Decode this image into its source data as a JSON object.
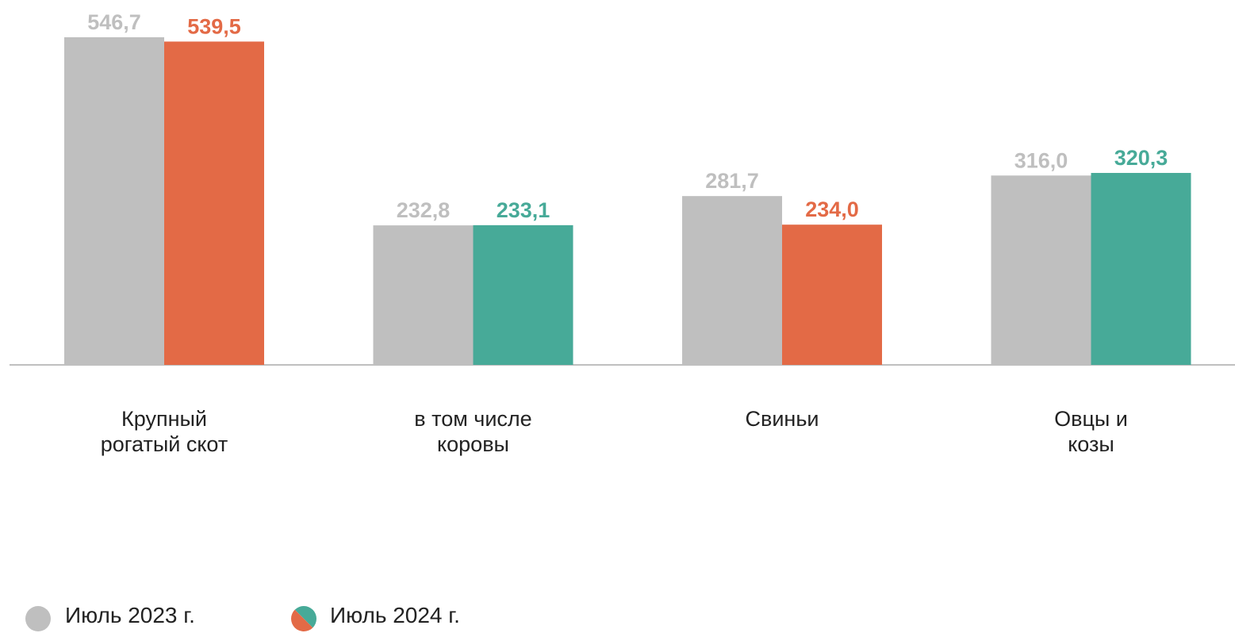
{
  "chart_data": {
    "type": "bar",
    "categories": [
      "Крупный\nрогатый скот",
      "в том числе\nкоровы",
      "Свиньи",
      "Овцы и\nкозы"
    ],
    "series": [
      {
        "name": "Июль 2023 г.",
        "color": "#bfbfbf",
        "values": [
          546.7,
          232.8,
          281.7,
          316.0
        ],
        "value_labels": [
          "546,7",
          "232,8",
          "281,7",
          "316,0"
        ]
      },
      {
        "name": "Июль 2024 г.",
        "colors": [
          "#e36a46",
          "#47aa98",
          "#e36a46",
          "#47aa98"
        ],
        "values": [
          539.5,
          233.1,
          234.0,
          320.3
        ],
        "value_labels": [
          "539,5",
          "233,1",
          "234,0",
          "320,3"
        ]
      }
    ],
    "legend": "bottom-left"
  }
}
